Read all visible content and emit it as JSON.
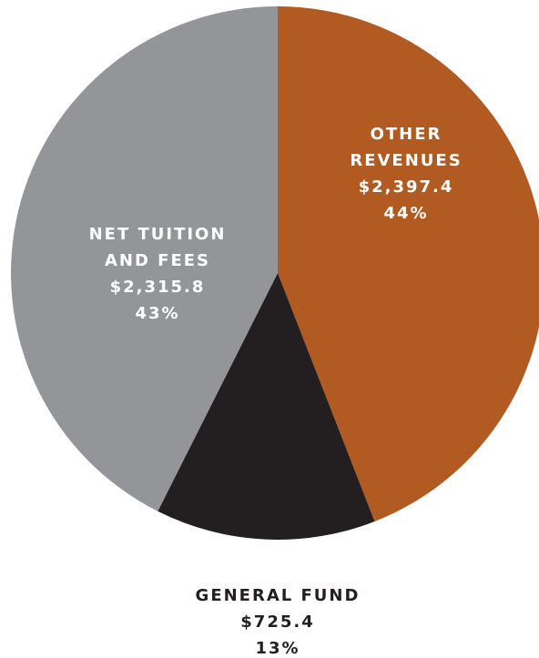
{
  "chart_data": {
    "type": "pie",
    "categories": [
      [
        "OTHER",
        "REVENUES"
      ],
      [
        "GENERAL FUND"
      ],
      [
        "NET TUITION",
        "AND FEES"
      ]
    ],
    "values": [
      2397.4,
      725.4,
      2315.8
    ],
    "value_labels": [
      "$2,397.4",
      "$725.4",
      "$2,315.8"
    ],
    "percent_labels": [
      "44%",
      "13%",
      "43%"
    ],
    "colors": [
      "#b15a22",
      "#231f20",
      "#939598"
    ],
    "label_colors": [
      "#ffffff",
      "#231f20",
      "#ffffff"
    ]
  }
}
